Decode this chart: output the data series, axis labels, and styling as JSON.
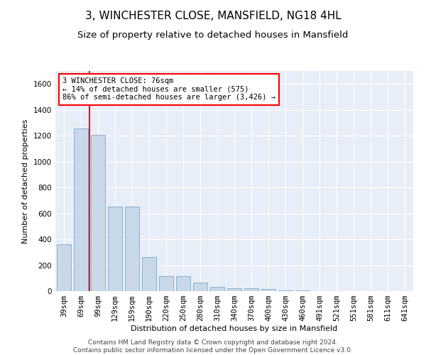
{
  "title": "3, WINCHESTER CLOSE, MANSFIELD, NG18 4HL",
  "subtitle": "Size of property relative to detached houses in Mansfield",
  "xlabel": "Distribution of detached houses by size in Mansfield",
  "ylabel": "Number of detached properties",
  "footer_line1": "Contains HM Land Registry data © Crown copyright and database right 2024.",
  "footer_line2": "Contains public sector information licensed under the Open Government Licence v3.0.",
  "annotation_line1": "3 WINCHESTER CLOSE: 76sqm",
  "annotation_line2": "← 14% of detached houses are smaller (575)",
  "annotation_line3": "86% of semi-detached houses are larger (3,426) →",
  "bar_color": "#c8d8e8",
  "bar_edge_color": "#7aaac8",
  "annotation_box_edge_color": "red",
  "red_line_x": 1.5,
  "categories": [
    "39sqm",
    "69sqm",
    "99sqm",
    "129sqm",
    "159sqm",
    "190sqm",
    "220sqm",
    "250sqm",
    "280sqm",
    "310sqm",
    "340sqm",
    "370sqm",
    "400sqm",
    "430sqm",
    "460sqm",
    "491sqm",
    "521sqm",
    "551sqm",
    "581sqm",
    "611sqm",
    "641sqm"
  ],
  "values": [
    360,
    1255,
    1205,
    655,
    655,
    265,
    115,
    115,
    65,
    35,
    20,
    20,
    15,
    8,
    3,
    2,
    1,
    1,
    0,
    0,
    0
  ],
  "ylim": [
    0,
    1700
  ],
  "yticks": [
    0,
    200,
    400,
    600,
    800,
    1000,
    1200,
    1400,
    1600
  ],
  "background_color": "#e8eef8",
  "grid_color": "#ffffff",
  "title_fontsize": 11,
  "subtitle_fontsize": 9.5,
  "axis_label_fontsize": 8,
  "tick_fontsize": 7.5,
  "annotation_fontsize": 7.5,
  "footer_fontsize": 6.5
}
